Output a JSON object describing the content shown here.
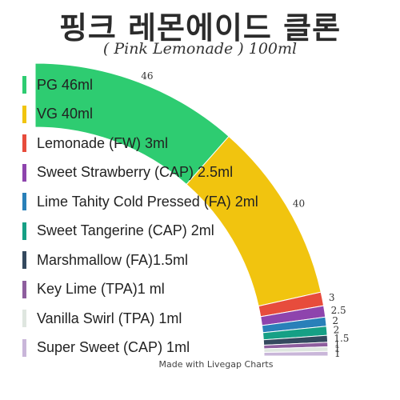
{
  "title": "핑크 레몬에이드 클론",
  "subtitle": "( Pink Lemonade ) 100ml",
  "footer": "Made with Livegap Charts",
  "chart_data": {
    "type": "pie",
    "variant": "quarter-donut",
    "legend_position": "left",
    "series": [
      {
        "name": "PG 46ml",
        "value": 46,
        "label": "46",
        "color": "#2ecc71"
      },
      {
        "name": "VG 40ml",
        "value": 40,
        "label": "40",
        "color": "#f1c40f"
      },
      {
        "name": "Lemonade (FW) 3ml",
        "value": 3,
        "label": "3",
        "color": "#e74c3c"
      },
      {
        "name": "Sweet Strawberry (CAP) 2.5ml",
        "value": 2.5,
        "label": "2.5",
        "color": "#8e44ad"
      },
      {
        "name": "Lime Tahity Cold Pressed (FA) 2ml",
        "value": 2,
        "label": "2",
        "color": "#2980b9"
      },
      {
        "name": "Sweet Tangerine (CAP) 2ml",
        "value": 2,
        "label": "2",
        "color": "#16a085"
      },
      {
        "name": "Marshmallow (FA)1.5ml",
        "value": 1.5,
        "label": "1.5",
        "color": "#34495e"
      },
      {
        "name": "Key Lime (TPA)1 ml",
        "value": 1,
        "label": "1",
        "color": "#8e5e9e"
      },
      {
        "name": "Vanilla Swirl (TPA) 1ml",
        "value": 1,
        "label": "1",
        "color": "#dfe6e0"
      },
      {
        "name": "Super Sweet (CAP) 1ml",
        "value": 1,
        "label": "1",
        "color": "#c9b6d9"
      }
    ]
  }
}
